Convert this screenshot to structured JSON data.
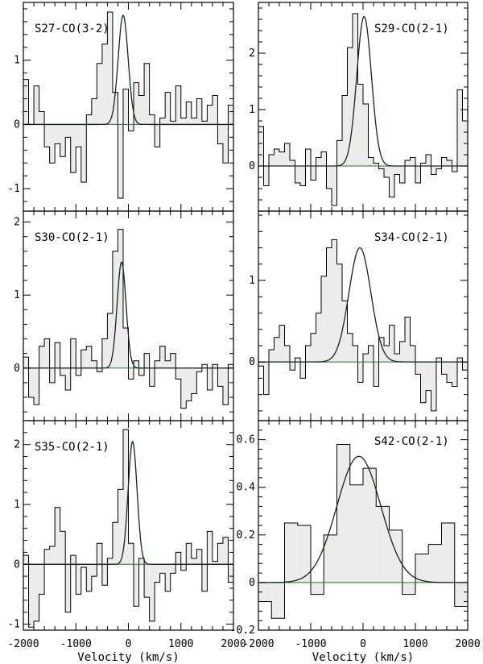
{
  "x_axis": {
    "label": "Velocity (km/s)",
    "range": [
      -2000,
      2000
    ],
    "ticks": [
      -2000,
      -1000,
      0,
      1000,
      2000
    ],
    "tick_labels": [
      "-2000",
      "-1000",
      "0",
      "1000",
      "2000"
    ]
  },
  "chart_data": [
    {
      "type": "histogram",
      "title": "S27-CO(3-2)",
      "ylim": [
        -1.35,
        1.9
      ],
      "yticks": [
        -1,
        0,
        1
      ],
      "ytick_labels": [
        "-1",
        "0",
        "1"
      ],
      "bin_width": 100,
      "x_start": -2000,
      "values": [
        0.7,
        0,
        0.6,
        0.2,
        -0.35,
        -0.6,
        -0.3,
        -0.5,
        -0.2,
        -0.75,
        -0.35,
        -0.9,
        0.15,
        0.4,
        0.95,
        1.25,
        1.75,
        0.5,
        -1.15,
        0.55,
        -0.1,
        0.65,
        0.45,
        0.95,
        0.15,
        -0.35,
        0.1,
        0.5,
        0.05,
        0.6,
        0.1,
        0.35,
        0.1,
        0.4,
        0.05,
        0.3,
        0.45,
        -0.3,
        -0.6,
        0.3
      ],
      "gaussian": {
        "amplitude": 1.7,
        "center": -100,
        "sigma": 95
      }
    },
    {
      "type": "histogram",
      "title": "S29-CO(2-1)",
      "ylim": [
        -0.8,
        2.9
      ],
      "yticks": [
        0,
        1,
        2
      ],
      "ytick_labels": [
        "0",
        "1",
        "2"
      ],
      "bin_width": 100,
      "x_start": -2000,
      "values": [
        0.7,
        -0.35,
        0.2,
        0.3,
        0.25,
        0.4,
        0.1,
        -0.3,
        -0.35,
        0.3,
        -0.25,
        0.15,
        0.25,
        -0.4,
        -0.7,
        0.45,
        1.25,
        2.1,
        2.7,
        1.45,
        1.1,
        0.15,
        0.05,
        -0.05,
        -0.2,
        -0.55,
        -0.15,
        -0.3,
        0.1,
        0.15,
        -0.3,
        0.05,
        0.2,
        -0.15,
        -0.05,
        0.15,
        0.1,
        -0.1,
        1.35,
        0.8
      ],
      "gaussian": {
        "amplitude": 2.65,
        "center": 20,
        "sigma": 140
      }
    },
    {
      "type": "histogram",
      "title": "S30-CO(2-1)",
      "ylim": [
        -0.72,
        2.15
      ],
      "yticks": [
        0,
        1,
        2
      ],
      "ytick_labels": [
        "0",
        "1",
        "2"
      ],
      "bin_width": 100,
      "x_start": -2000,
      "values": [
        0.15,
        -0.4,
        -0.5,
        0.3,
        0.4,
        -0.2,
        0.35,
        -0.1,
        -0.3,
        0.4,
        -0.1,
        0.25,
        0.3,
        0.1,
        -0.05,
        0.4,
        0.75,
        1.6,
        1.9,
        0.55,
        -0.15,
        0.1,
        -0.1,
        0.2,
        -0.25,
        0.1,
        0.3,
        0.1,
        0.2,
        -0.15,
        -0.55,
        -0.45,
        -0.35,
        -0.05,
        0.05,
        -0.3,
        0.05,
        -0.25,
        -0.5,
        0.05
      ],
      "gaussian": {
        "amplitude": 1.45,
        "center": -130,
        "sigma": 85
      }
    },
    {
      "type": "histogram",
      "title": "S34-CO(2-1)",
      "ylim": [
        -0.72,
        1.85
      ],
      "yticks": [
        0,
        1
      ],
      "ytick_labels": [
        "0",
        "1"
      ],
      "bin_width": 100,
      "x_start": -2000,
      "values": [
        -0.05,
        -0.4,
        0.15,
        0.3,
        0.45,
        0.2,
        -0.1,
        0.05,
        -0.2,
        0.2,
        0.35,
        0.6,
        1.05,
        1.4,
        1.5,
        1.2,
        0.75,
        0.35,
        0.2,
        -0.25,
        0.1,
        0.2,
        -0.3,
        0.3,
        0.2,
        0.45,
        0.1,
        0.25,
        0.55,
        0.2,
        -0.15,
        -0.5,
        -0.35,
        -0.6,
        0.05,
        -0.15,
        -0.25,
        -0.3,
        0.05,
        -0.1
      ],
      "gaussian": {
        "amplitude": 1.4,
        "center": -60,
        "sigma": 210
      }
    },
    {
      "type": "histogram",
      "title": "S35-CO(2-1)",
      "ylim": [
        -1.1,
        2.4
      ],
      "yticks": [
        -1,
        0,
        1,
        2
      ],
      "ytick_labels": [
        "-1",
        "0",
        "1",
        "2"
      ],
      "bin_width": 100,
      "x_start": -2000,
      "values": [
        0.15,
        -1.05,
        -0.95,
        -0.5,
        0.25,
        0.3,
        0.95,
        0.55,
        -0.8,
        0.15,
        -0.5,
        -0.05,
        -0.45,
        -0.2,
        0.35,
        -0.35,
        0.1,
        0.7,
        1.25,
        2.25,
        0.35,
        -0.7,
        0.1,
        -0.55,
        -0.95,
        -0.3,
        -0.15,
        -0.45,
        -0.15,
        0.2,
        -0.1,
        0.35,
        0.1,
        0.25,
        -0.45,
        0.55,
        0.05,
        0.35,
        0.45,
        -0.3
      ],
      "gaussian": {
        "amplitude": 2.05,
        "center": 80,
        "sigma": 85
      }
    },
    {
      "type": "histogram",
      "title": "S42-CO(2-1)",
      "ylim": [
        -0.2,
        0.68
      ],
      "yticks": [
        -0.2,
        0,
        0.2,
        0.4,
        0.6
      ],
      "ytick_labels": [
        "-0.2",
        "0",
        "0.2",
        "0.4",
        "0.6"
      ],
      "bin_width": 250,
      "x_start": -2000,
      "values": [
        -0.08,
        -0.15,
        0.25,
        0.24,
        -0.05,
        0.2,
        0.58,
        0.41,
        0.48,
        0.32,
        0.22,
        -0.05,
        0.12,
        0.16,
        0.25,
        -0.1
      ],
      "gaussian": {
        "amplitude": 0.53,
        "center": -80,
        "sigma": 420
      }
    }
  ]
}
